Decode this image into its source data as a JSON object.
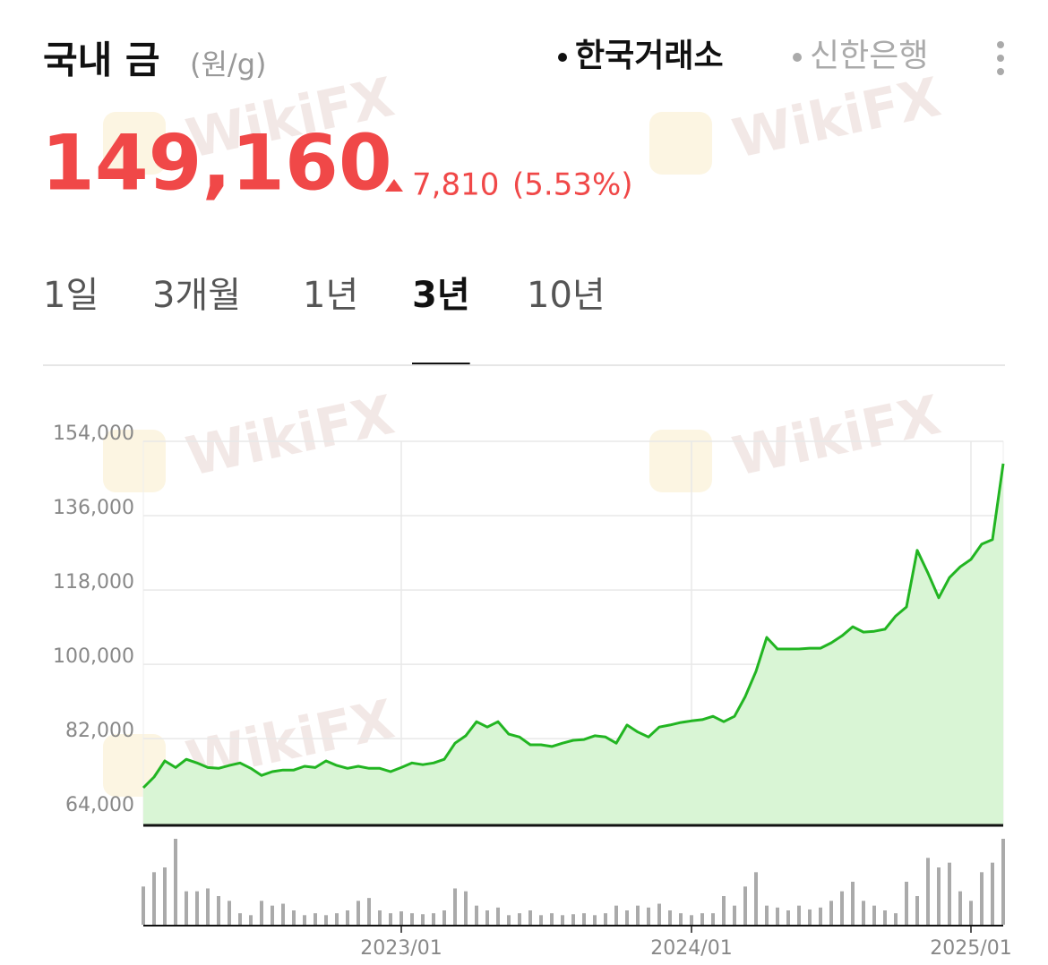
{
  "header": {
    "title": "국내 금",
    "unit": "(원/g)",
    "sources": [
      "한국거래소",
      "신한은행"
    ],
    "active_source": 0,
    "price": "149,160",
    "change": "7,810",
    "change_pct": "(5.53%)"
  },
  "tabs": {
    "items": [
      "1일",
      "3개월",
      "1년",
      "3년",
      "10년"
    ],
    "active": 3
  },
  "watermark": "WikiFX",
  "chart_data": {
    "type": "line",
    "categories": [
      null,
      null,
      null,
      null,
      null,
      null,
      null,
      null,
      null,
      null,
      null,
      null,
      null,
      null,
      null,
      null,
      null,
      null,
      null,
      null,
      null,
      null,
      null,
      null,
      "2023/01",
      null,
      null,
      null,
      null,
      null,
      null,
      null,
      null,
      null,
      null,
      null,
      null,
      null,
      null,
      null,
      null,
      null,
      null,
      null,
      null,
      null,
      null,
      null,
      null,
      null,
      null,
      "2024/01",
      null,
      null,
      null,
      null,
      null,
      null,
      null,
      null,
      null,
      null,
      null,
      null,
      null,
      null,
      null,
      null,
      null,
      null,
      null,
      null,
      null,
      null,
      null,
      null,
      null,
      "2025/01",
      null,
      null,
      null
    ],
    "series": [
      {
        "color": "#22b522",
        "fill": "#d9f5d5",
        "values": [
          70100,
          72700,
          76600,
          75000,
          77000,
          76100,
          75000,
          74800,
          75500,
          76100,
          74800,
          73100,
          74000,
          74400,
          74400,
          75300,
          75000,
          76600,
          75500,
          74800,
          75300,
          74800,
          74800,
          74000,
          75000,
          76100,
          75700,
          76100,
          77000,
          80900,
          82700,
          86100,
          84800,
          86100,
          83100,
          82400,
          80500,
          80500,
          80100,
          80900,
          81600,
          81800,
          82700,
          82400,
          80900,
          85300,
          83600,
          82400,
          84800,
          85300,
          85900,
          86300,
          86600,
          87400,
          86100,
          87400,
          92200,
          98300,
          106500,
          103700,
          103700,
          103700,
          103900,
          103900,
          105200,
          106900,
          109100,
          107800,
          108000,
          108500,
          111700,
          113900,
          127600,
          122100,
          116100,
          121000,
          123600,
          125400,
          129100,
          130200,
          148600
        ]
      }
    ],
    "volume": {
      "color": "#aaaaaa",
      "values": [
        40,
        55,
        60,
        90,
        35,
        35,
        38,
        30,
        25,
        12,
        10,
        25,
        20,
        22,
        15,
        10,
        12,
        10,
        12,
        15,
        25,
        28,
        15,
        12,
        14,
        12,
        11,
        12,
        15,
        38,
        35,
        20,
        15,
        18,
        10,
        12,
        15,
        10,
        12,
        10,
        11,
        12,
        10,
        12,
        20,
        15,
        20,
        18,
        22,
        15,
        12,
        10,
        12,
        12,
        30,
        20,
        40,
        55,
        20,
        18,
        15,
        20,
        16,
        18,
        25,
        35,
        45,
        25,
        20,
        15,
        12,
        45,
        30,
        70,
        60,
        65,
        35,
        25,
        55,
        65,
        90
      ]
    },
    "ylim": [
      61000,
      154000
    ],
    "yticks": [
      {
        "value": 64000,
        "label": "64,000"
      },
      {
        "value": 82000,
        "label": "82,000"
      },
      {
        "value": 100000,
        "label": "100,000"
      },
      {
        "value": 118000,
        "label": "118,000"
      },
      {
        "value": 136000,
        "label": "136,000"
      },
      {
        "value": 154000,
        "label": "154,000"
      }
    ],
    "grid": true
  }
}
